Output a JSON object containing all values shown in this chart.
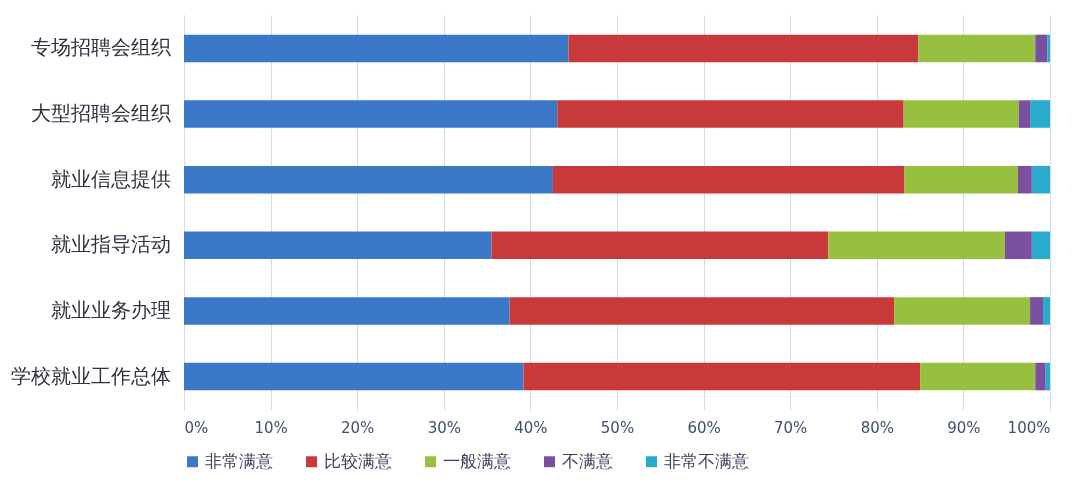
{
  "chart_data": {
    "type": "bar",
    "orientation": "horizontal",
    "stacked": true,
    "categories": [
      "专场招聘会组织",
      "大型招聘会组织",
      "就业信息提供",
      "就业指导活动",
      "就业业务办理",
      "学校就业工作总体"
    ],
    "series": [
      {
        "name": "非常满意",
        "color": "#3c78c8",
        "values": [
          44.4,
          43.1,
          42.6,
          35.5,
          37.6,
          39.2
        ]
      },
      {
        "name": "比较满意",
        "color": "#c83a3a",
        "values": [
          40.4,
          40.0,
          40.6,
          38.9,
          44.4,
          45.8
        ]
      },
      {
        "name": "一般满意",
        "color": "#98c040",
        "values": [
          13.5,
          13.3,
          13.1,
          20.4,
          15.7,
          13.3
        ]
      },
      {
        "name": "不满意",
        "color": "#7b4fa0",
        "values": [
          1.4,
          1.3,
          1.6,
          3.1,
          1.5,
          1.2
        ]
      },
      {
        "name": "非常不满意",
        "color": "#2aaacc",
        "values": [
          0.3,
          2.3,
          2.1,
          2.1,
          0.8,
          0.5
        ]
      }
    ],
    "xlim": [
      0,
      100
    ],
    "xticks": [
      {
        "value": 0,
        "label": "0%"
      },
      {
        "value": 10,
        "label": "10%"
      },
      {
        "value": 20,
        "label": "20%"
      },
      {
        "value": 30,
        "label": "30%"
      },
      {
        "value": 40,
        "label": "40%"
      },
      {
        "value": 50,
        "label": "50%"
      },
      {
        "value": 60,
        "label": "60%"
      },
      {
        "value": 70,
        "label": "70%"
      },
      {
        "value": 80,
        "label": "80%"
      },
      {
        "value": 90,
        "label": "90%"
      },
      {
        "value": 100,
        "label": "100%"
      }
    ],
    "grid": "x",
    "legend": "bottom"
  }
}
